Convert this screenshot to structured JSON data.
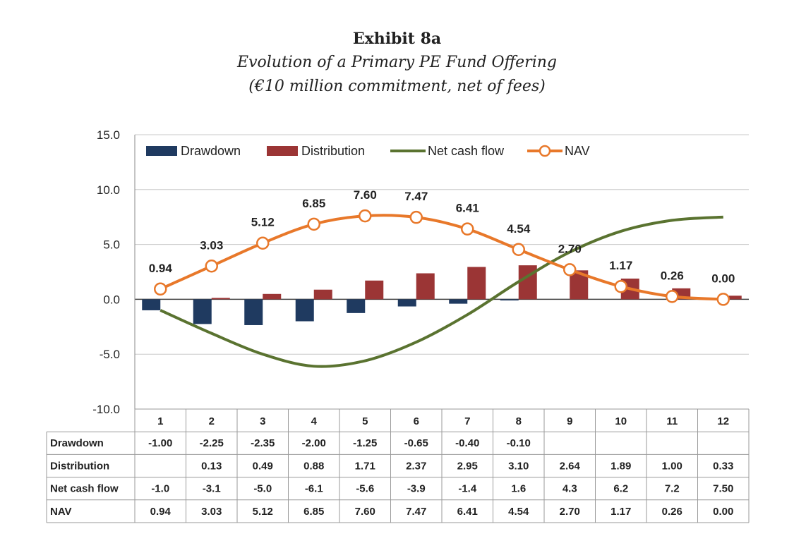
{
  "title": "Exhibit 8a",
  "subtitle": "Evolution of a Primary PE Fund Offering",
  "subtitle2": "(€10 million commitment, net of fees)",
  "chart_data": {
    "type": "bar+line",
    "title": "Exhibit 8a",
    "categories": [
      "1",
      "2",
      "3",
      "4",
      "5",
      "6",
      "7",
      "8",
      "9",
      "10",
      "11",
      "12"
    ],
    "ylim": [
      -10,
      15
    ],
    "yticks": [
      15.0,
      10.0,
      5.0,
      0.0,
      -5.0,
      -10.0
    ],
    "ytick_labels": [
      "15.0",
      "10.0",
      "5.0",
      "0.0",
      "-5.0",
      "-10.0"
    ],
    "legend_position": "top",
    "series": [
      {
        "name": "Drawdown",
        "kind": "bar",
        "color": "#1f3a60",
        "values": [
          -1.0,
          -2.25,
          -2.35,
          -2.0,
          -1.25,
          -0.65,
          -0.4,
          -0.1,
          null,
          null,
          null,
          null
        ]
      },
      {
        "name": "Distribution",
        "kind": "bar",
        "color": "#9b3535",
        "values": [
          null,
          0.13,
          0.49,
          0.88,
          1.71,
          2.37,
          2.95,
          3.1,
          2.64,
          1.89,
          1.0,
          0.33
        ]
      },
      {
        "name": "Net cash flow",
        "kind": "line",
        "color": "#5a7330",
        "values": [
          -1.0,
          -3.1,
          -5.0,
          -6.1,
          -5.6,
          -3.9,
          -1.4,
          1.6,
          4.3,
          6.2,
          7.2,
          7.5
        ]
      },
      {
        "name": "NAV",
        "kind": "line-marker",
        "color": "#e8782a",
        "values": [
          0.94,
          3.03,
          5.12,
          6.85,
          7.6,
          7.47,
          6.41,
          4.54,
          2.7,
          1.17,
          0.26,
          0.0
        ],
        "labels": [
          "0.94",
          "3.03",
          "5.12",
          "6.85",
          "7.60",
          "7.47",
          "6.41",
          "4.54",
          "2.70",
          "1.17",
          "0.26",
          "0.00"
        ]
      }
    ],
    "table": {
      "rows": [
        {
          "label": "Drawdown",
          "cells": [
            "-1.00",
            "-2.25",
            "-2.35",
            "-2.00",
            "-1.25",
            "-0.65",
            "-0.40",
            "-0.10",
            "",
            "",
            "",
            ""
          ]
        },
        {
          "label": "Distribution",
          "cells": [
            "",
            "0.13",
            "0.49",
            "0.88",
            "1.71",
            "2.37",
            "2.95",
            "3.10",
            "2.64",
            "1.89",
            "1.00",
            "0.33"
          ]
        },
        {
          "label": "Net cash flow",
          "cells": [
            "-1.0",
            "-3.1",
            "-5.0",
            "-6.1",
            "-5.6",
            "-3.9",
            "-1.4",
            "1.6",
            "4.3",
            "6.2",
            "7.2",
            "7.50"
          ]
        },
        {
          "label": "NAV",
          "cells": [
            "0.94",
            "3.03",
            "5.12",
            "6.85",
            "7.60",
            "7.47",
            "6.41",
            "4.54",
            "2.70",
            "1.17",
            "0.26",
            "0.00"
          ]
        }
      ]
    }
  }
}
